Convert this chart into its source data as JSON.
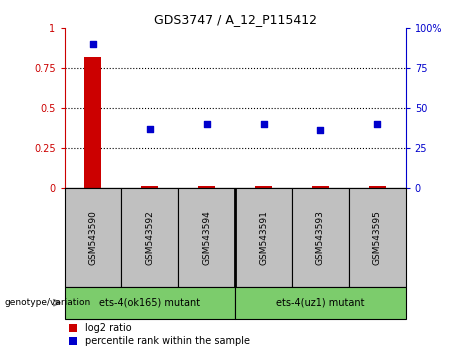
{
  "title": "GDS3747 / A_12_P115412",
  "samples": [
    "GSM543590",
    "GSM543592",
    "GSM543594",
    "GSM543591",
    "GSM543593",
    "GSM543595"
  ],
  "log2_ratio": [
    0.82,
    0.01,
    0.01,
    0.01,
    0.01,
    0.01
  ],
  "percentile_rank": [
    0.9,
    0.37,
    0.4,
    0.4,
    0.36,
    0.4
  ],
  "group1_label": "ets-4(ok165) mutant",
  "group2_label": "ets-4(uz1) mutant",
  "group1_color": "#7CCC6C",
  "group2_color": "#7CCC6C",
  "bar_color": "#CC0000",
  "dot_color": "#0000CC",
  "tick_bg_color": "#C0C0C0",
  "ylim": [
    0,
    1
  ],
  "yticks": [
    0,
    0.25,
    0.5,
    0.75,
    1.0
  ],
  "ytick_labels_left": [
    "0",
    "0.25",
    "0.5",
    "0.75",
    "1"
  ],
  "ytick_labels_right": [
    "0",
    "25",
    "50",
    "75",
    "100%"
  ],
  "legend_log2": "log2 ratio",
  "legend_pct": "percentile rank within the sample",
  "genotype_label": "genotype/variation"
}
